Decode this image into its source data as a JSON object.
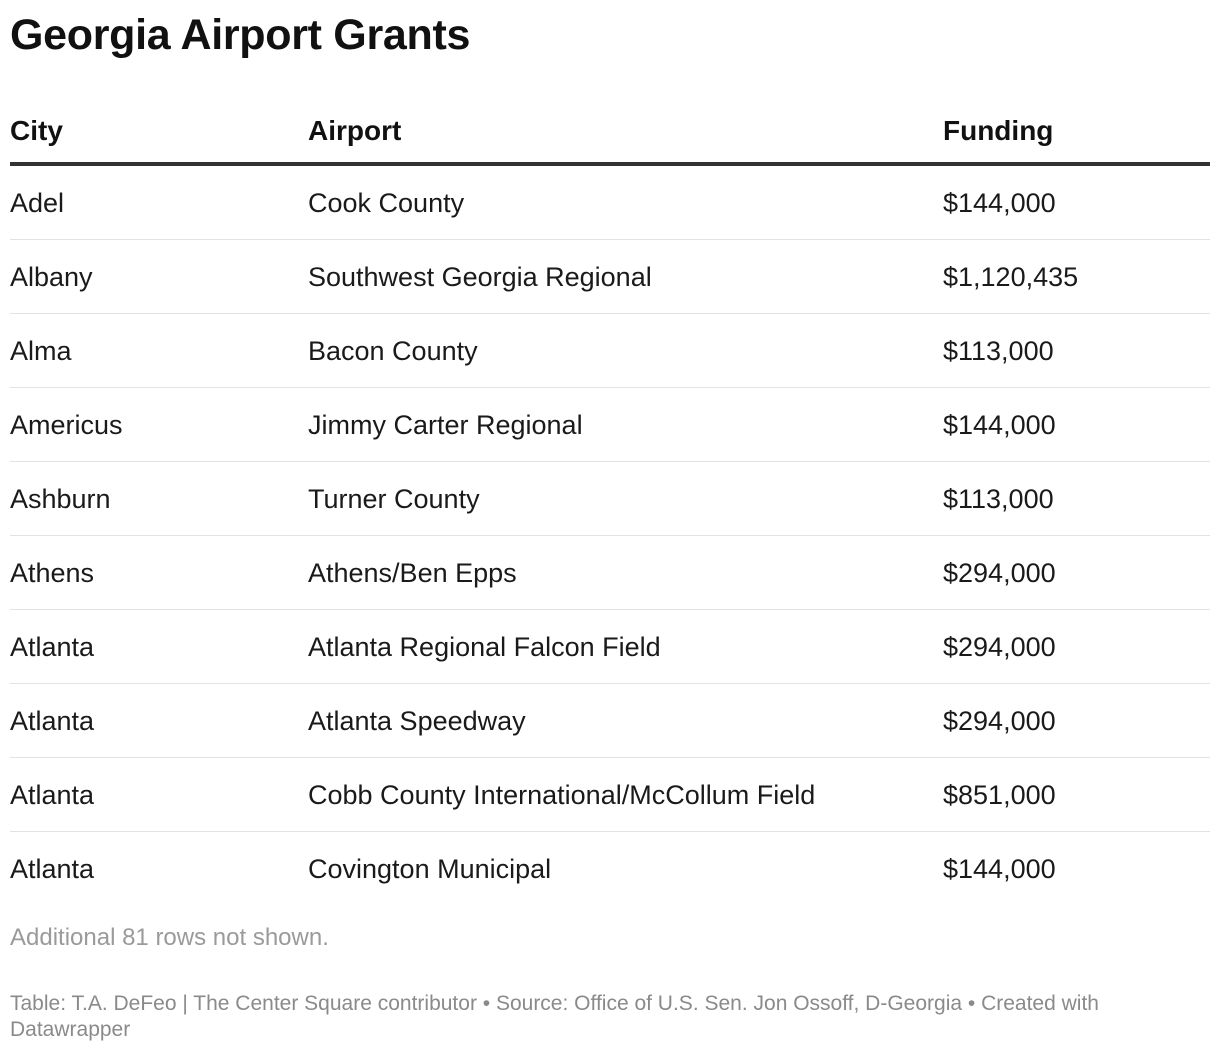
{
  "chart_data": {
    "type": "table",
    "title": "Georgia Airport Grants",
    "columns": [
      "City",
      "Airport",
      "Funding"
    ],
    "rows": [
      [
        "Adel",
        "Cook County",
        "$144,000"
      ],
      [
        "Albany",
        "Southwest Georgia Regional",
        "$1,120,435"
      ],
      [
        "Alma",
        "Bacon County",
        "$113,000"
      ],
      [
        "Americus",
        "Jimmy Carter Regional",
        "$144,000"
      ],
      [
        "Ashburn",
        "Turner County",
        "$113,000"
      ],
      [
        "Athens",
        "Athens/Ben Epps",
        "$294,000"
      ],
      [
        "Atlanta",
        "Atlanta Regional Falcon Field",
        "$294,000"
      ],
      [
        "Atlanta",
        "Atlanta Speedway",
        "$294,000"
      ],
      [
        "Atlanta",
        "Cobb County International/McCollum Field",
        "$851,000"
      ],
      [
        "Atlanta",
        "Covington Municipal",
        "$144,000"
      ]
    ],
    "note": "Additional 81 rows not shown.",
    "footer": "Table: T.A. DeFeo | The Center Square contributor • Source: Office of U.S. Sen. Jon Ossoff, D-Georgia • Created with Datawrapper"
  },
  "colors": {
    "title": "#111111",
    "text": "#1a1a1a",
    "header_rule": "#333333",
    "row_rule": "#e2e2e2",
    "note": "#9a9a9a",
    "footer": "#8a8a8a"
  }
}
